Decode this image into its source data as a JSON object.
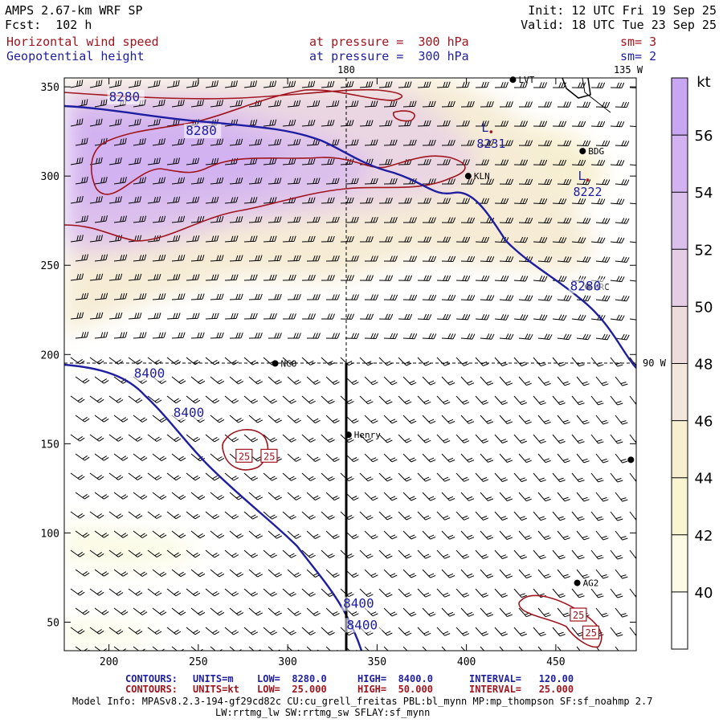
{
  "header": {
    "model": "AMPS 2.67-km WRF SP",
    "forecast": "Fcst:  102 h",
    "init": "Init: 12 UTC Fri 19 Sep 25",
    "valid": "Valid: 18 UTC Tue 23 Sep 25",
    "field1": "Horizontal wind speed",
    "field1_level": "at pressure =  300 hPa",
    "field1_sm": "sm= 3",
    "field2": "Geopotential height",
    "field2_level": "at pressure =  300 hPa",
    "field2_sm": "sm= 2"
  },
  "colors": {
    "height_contour": "#1e1ea0",
    "speed_contour": "#a0141e",
    "text": "#000000"
  },
  "chart_data": {
    "type": "heatmap",
    "title": "Horizontal wind speed / Geopotential height at 300 hPa",
    "xlim": [
      175,
      495
    ],
    "ylim": [
      34,
      355
    ],
    "x_ticks": [
      200,
      250,
      300,
      350,
      400,
      450
    ],
    "y_ticks": [
      50,
      100,
      150,
      200,
      250,
      300,
      350
    ],
    "colorbar": {
      "unit": "kt",
      "ticks": [
        40,
        42,
        44,
        46,
        48,
        50,
        52,
        54,
        56
      ],
      "levels": [
        {
          "from": 38,
          "to": 40,
          "color": "#ffffff"
        },
        {
          "from": 40,
          "to": 42,
          "color": "#fbfbe6"
        },
        {
          "from": 42,
          "to": 44,
          "color": "#f9f5d2"
        },
        {
          "from": 44,
          "to": 46,
          "color": "#f7efd0"
        },
        {
          "from": 46,
          "to": 48,
          "color": "#f3e6dc"
        },
        {
          "from": 48,
          "to": 50,
          "color": "#eedcdc"
        },
        {
          "from": 50,
          "to": 52,
          "color": "#e5cde6"
        },
        {
          "from": 52,
          "to": 54,
          "color": "#dcc0ec"
        },
        {
          "from": 54,
          "to": 56,
          "color": "#d2b2f0"
        },
        {
          "from": 56,
          "to": 58,
          "color": "#c9a6f2"
        }
      ]
    },
    "meridian_labels": [
      "180",
      "135 W",
      "90 W"
    ],
    "stations": [
      {
        "name": "LVT",
        "x": 426,
        "y": 354
      },
      {
        "name": "BDG",
        "x": 465,
        "y": 314
      },
      {
        "name": "KLN",
        "x": 401,
        "y": 300
      },
      {
        "name": "HRC",
        "x": 468,
        "y": 238
      },
      {
        "name": "NCO",
        "x": 293,
        "y": 195
      },
      {
        "name": "Henry",
        "x": 334,
        "y": 155
      },
      {
        "name": "",
        "x": 492,
        "y": 141
      },
      {
        "name": "AG2",
        "x": 462,
        "y": 72
      }
    ],
    "lows": [
      {
        "label": "L",
        "value": "8231",
        "x": 412,
        "y": 323
      },
      {
        "label": "L",
        "value": "8222",
        "x": 466,
        "y": 296
      }
    ],
    "height_contours": [
      {
        "value": 8280,
        "labels": [
          {
            "text": "8280",
            "x": 200,
            "y": 342
          },
          {
            "text": "8280",
            "x": 243,
            "y": 323
          },
          {
            "text": "8280",
            "x": 458,
            "y": 236
          }
        ]
      },
      {
        "value": 8400,
        "labels": [
          {
            "text": "8400",
            "x": 214,
            "y": 187
          },
          {
            "text": "8400",
            "x": 236,
            "y": 165
          },
          {
            "text": "8400",
            "x": 331,
            "y": 58
          },
          {
            "text": "8400",
            "x": 333,
            "y": 46
          }
        ]
      }
    ],
    "speed_contours": [
      {
        "value": 50,
        "description": "jet core region upper left"
      },
      {
        "value": 25,
        "labels": [
          {
            "text": "25",
            "x": 272,
            "y": 141
          },
          {
            "text": "25",
            "x": 286,
            "y": 141
          },
          {
            "text": "25",
            "x": 459,
            "y": 52
          },
          {
            "text": "25",
            "x": 466,
            "y": 42
          }
        ]
      }
    ],
    "cross_section": {
      "x": 334,
      "y_from": 34,
      "y_to": 196
    }
  },
  "footer": {
    "line1": {
      "label": "CONTOURS:",
      "units": "UNITS=m",
      "low": "LOW=  8280.0",
      "high": "HIGH=  8400.0",
      "interval": "INTERVAL=   120.00"
    },
    "line2": {
      "label": "CONTOURS:",
      "units": "UNITS=kt",
      "low": "LOW=  25.000",
      "high": "HIGH=  50.000",
      "interval": "INTERVAL=   25.000"
    },
    "model_info": "Model Info: MPASv8.2.3-194-gf29cd82c CU:cu_grell_freitas PBL:bl_mynn MP:mp_thompson SF:sf_noahmp 2.7",
    "model_info2": "LW:rrtmg_lw SW:rrtmg_sw SFLAY:sf_mynn"
  }
}
